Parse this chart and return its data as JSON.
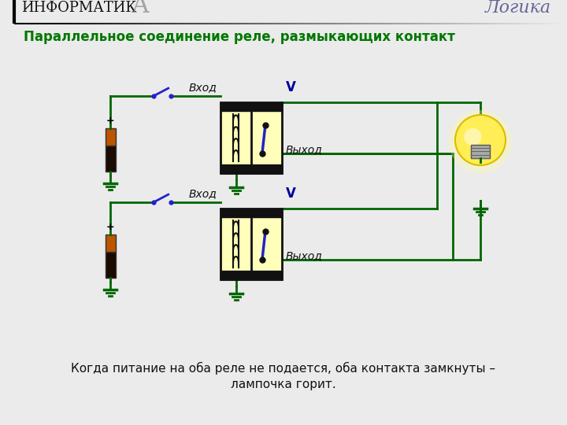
{
  "title_left": "ИНФОРМАТИКА",
  "title_right": "Логика",
  "subtitle": "Параллельное соединение реле, размыкающих контакт",
  "label_vhod": "Вход",
  "label_vyhod": "Выход",
  "label_V": "V",
  "bottom_text_1": "Когда питание на оба реле не подается, оба контакта замкнуты –",
  "bottom_text_2": "лампочка горит.",
  "bg_color": "#ebebeb",
  "wire_color": "#006600",
  "relay_fill": "#ffffbb",
  "relay_border": "#111111",
  "contact_color": "#2222cc",
  "title_left_color": "#111111",
  "title_right_color": "#666699",
  "subtitle_color": "#007700",
  "switch_color": "#2222cc"
}
